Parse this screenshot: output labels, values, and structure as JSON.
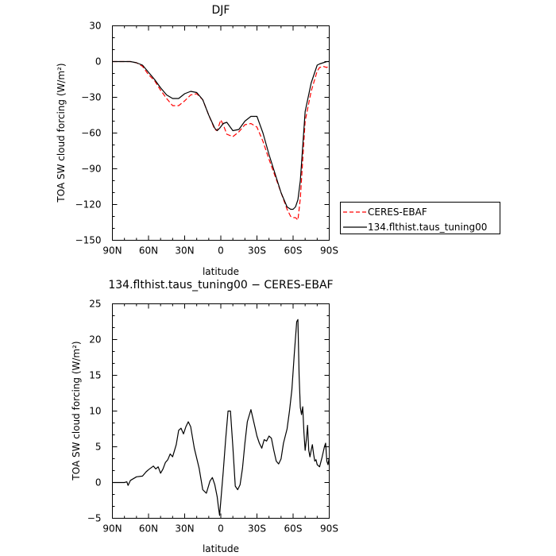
{
  "chart_data": [
    {
      "type": "line",
      "title": "DJF",
      "xlabel": "latitude",
      "ylabel": "TOA SW cloud forcing (W/m²)",
      "ylim": [
        -150,
        30
      ],
      "yticks": [
        30,
        0,
        -30,
        -60,
        -90,
        -120,
        -150
      ],
      "xlim": [
        90,
        -90
      ],
      "xticks": [
        {
          "v": 90,
          "label": "90N"
        },
        {
          "v": 60,
          "label": "60N"
        },
        {
          "v": 30,
          "label": "30N"
        },
        {
          "v": 0,
          "label": "0"
        },
        {
          "v": -30,
          "label": "30S"
        },
        {
          "v": -60,
          "label": "60S"
        },
        {
          "v": -90,
          "label": "90S"
        }
      ],
      "legend": "right",
      "series": [
        {
          "name": "CERES-EBAF",
          "color": "#ff0000",
          "dash": "dashed",
          "x": [
            90,
            75,
            70,
            65,
            60,
            55,
            50,
            45,
            40,
            35,
            30,
            25,
            20,
            15,
            10,
            5,
            3,
            0,
            -2,
            -5,
            -10,
            -15,
            -20,
            -25,
            -30,
            -35,
            -40,
            -45,
            -50,
            -55,
            -58,
            -60,
            -62,
            -64,
            -66,
            -70,
            -75,
            -80,
            -82,
            -85,
            -88,
            -90
          ],
          "y": [
            0,
            0,
            -1,
            -4,
            -11,
            -16,
            -24,
            -31,
            -37,
            -37,
            -33,
            -28,
            -27,
            -32,
            -45,
            -57,
            -58,
            -49,
            -53,
            -61,
            -63,
            -59,
            -53,
            -52,
            -55,
            -67,
            -82,
            -96,
            -110,
            -124,
            -130,
            -131,
            -131,
            -133,
            -115,
            -50,
            -25,
            -8,
            -5,
            -4,
            -5,
            -3
          ]
        },
        {
          "name": "134.flthist.taus_tuning00",
          "color": "#000000",
          "dash": "solid",
          "x": [
            90,
            75,
            70,
            65,
            60,
            55,
            50,
            45,
            40,
            35,
            30,
            25,
            20,
            15,
            10,
            5,
            3,
            1,
            -2,
            -5,
            -10,
            -15,
            -20,
            -25,
            -30,
            -35,
            -40,
            -45,
            -50,
            -55,
            -58,
            -60,
            -62,
            -64,
            -66,
            -70,
            -75,
            -80,
            -82,
            -85,
            -88,
            -90
          ],
          "y": [
            0,
            0,
            -1,
            -3,
            -9,
            -15,
            -22,
            -28,
            -31,
            -31,
            -27,
            -25,
            -26,
            -32,
            -45,
            -56,
            -58,
            -56,
            -52,
            -51,
            -58,
            -57,
            -50,
            -46,
            -46,
            -60,
            -78,
            -94,
            -110,
            -122,
            -124,
            -124,
            -122,
            -116,
            -100,
            -42,
            -18,
            -3,
            -2,
            -1,
            0,
            0
          ]
        }
      ]
    },
    {
      "type": "line",
      "title": "134.flthist.taus_tuning00 − CERES-EBAF",
      "xlabel": "latitude",
      "ylabel": "TOA SW cloud forcing (W/m²)",
      "ylim": [
        -5,
        25
      ],
      "yticks": [
        25,
        20,
        15,
        10,
        5,
        0,
        -5
      ],
      "xlim": [
        90,
        -90
      ],
      "xticks": [
        {
          "v": 90,
          "label": "90N"
        },
        {
          "v": 60,
          "label": "60N"
        },
        {
          "v": 30,
          "label": "30N"
        },
        {
          "v": 0,
          "label": "0"
        },
        {
          "v": -30,
          "label": "30S"
        },
        {
          "v": -60,
          "label": "60S"
        },
        {
          "v": -90,
          "label": "90S"
        }
      ],
      "series": [
        {
          "color": "#000000",
          "dash": "solid",
          "x": [
            90,
            80,
            78,
            77,
            75,
            70,
            65,
            62,
            60,
            56,
            54,
            52,
            50,
            48,
            46,
            44,
            42,
            40,
            37,
            35,
            33,
            31,
            29,
            27,
            25,
            22,
            18,
            15,
            12,
            9,
            7,
            5,
            3,
            2,
            1,
            -2,
            -4,
            -6,
            -8,
            -10,
            -12,
            -14,
            -16,
            -18,
            -20,
            -22,
            -25,
            -28,
            -30,
            -32,
            -34,
            -36,
            -38,
            -40,
            -42,
            -44,
            -46,
            -48,
            -50,
            -52,
            -55,
            -57,
            -59,
            -61,
            -63,
            -64,
            -65,
            -66,
            -67,
            -68,
            -69,
            -70,
            -71,
            -72,
            -73,
            -74,
            -75,
            -76,
            -77,
            -78,
            -79,
            -80,
            -82,
            -84,
            -86,
            -87,
            -88,
            -89,
            -90
          ],
          "y": [
            0,
            0,
            0.1,
            -0.4,
            0.3,
            0.8,
            0.9,
            1.5,
            1.8,
            2.3,
            1.9,
            2.2,
            1.3,
            1.9,
            2.8,
            3.2,
            4.0,
            3.6,
            5.3,
            7.3,
            7.6,
            6.8,
            7.8,
            8.5,
            7.8,
            4.8,
            2.0,
            -1.0,
            -1.5,
            0.2,
            0.7,
            -0.3,
            -2.0,
            -3.4,
            -4.6,
            1.5,
            6.0,
            10.0,
            10.0,
            5.0,
            -0.5,
            -1.0,
            -0.3,
            2.0,
            5.5,
            8.5,
            10.2,
            8.0,
            6.5,
            5.5,
            4.8,
            6.0,
            5.8,
            6.5,
            6.2,
            4.5,
            3.0,
            2.6,
            3.3,
            5.5,
            7.5,
            10.0,
            13.0,
            18.0,
            22.5,
            22.8,
            15.0,
            10.5,
            9.5,
            10.6,
            7.0,
            4.5,
            6.0,
            8.0,
            4.5,
            3.6,
            4.5,
            5.3,
            4.0,
            3.0,
            3.2,
            2.5,
            2.2,
            3.5,
            5.0,
            5.5,
            3.0,
            2.5,
            3.5
          ]
        }
      ]
    }
  ]
}
